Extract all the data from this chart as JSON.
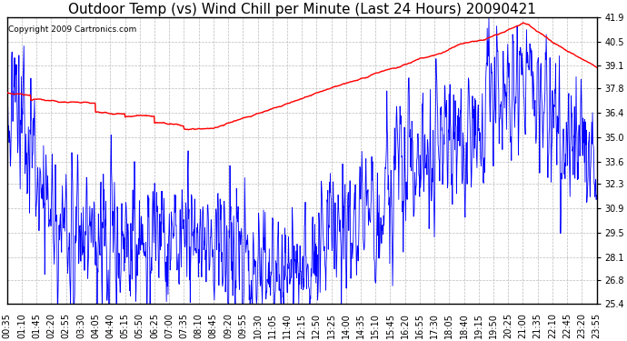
{
  "title": "Outdoor Temp (vs) Wind Chill per Minute (Last 24 Hours) 20090421",
  "copyright": "Copyright 2009 Cartronics.com",
  "yticks": [
    41.9,
    40.5,
    39.1,
    37.8,
    36.4,
    35.0,
    33.6,
    32.3,
    30.9,
    29.5,
    28.1,
    26.8,
    25.4
  ],
  "ymin": 25.4,
  "ymax": 41.9,
  "xtick_labels": [
    "00:35",
    "01:10",
    "01:45",
    "02:20",
    "02:55",
    "03:30",
    "04:05",
    "04:40",
    "05:15",
    "05:50",
    "06:25",
    "07:00",
    "07:35",
    "08:10",
    "08:45",
    "09:20",
    "09:55",
    "10:30",
    "11:05",
    "11:40",
    "12:15",
    "12:50",
    "13:25",
    "14:00",
    "14:35",
    "15:10",
    "15:45",
    "16:20",
    "16:55",
    "17:30",
    "18:05",
    "18:40",
    "19:15",
    "19:50",
    "20:25",
    "21:00",
    "21:35",
    "22:10",
    "22:45",
    "23:20",
    "23:55"
  ],
  "line_color_red": "#FF0000",
  "line_color_blue": "#0000FF",
  "background_color": "#FFFFFF",
  "plot_bg_color": "#FFFFFF",
  "grid_color": "#BBBBBB",
  "title_fontsize": 11,
  "copyright_fontsize": 6.5,
  "tick_fontsize": 7
}
